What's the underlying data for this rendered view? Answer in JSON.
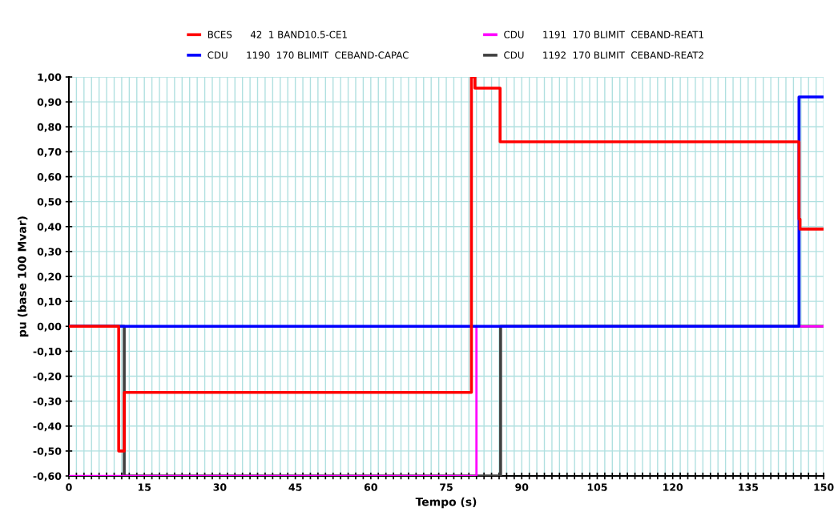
{
  "chart_data": {
    "type": "step",
    "xlabel": "Tempo (s)",
    "ylabel": "pu (base 100 Mvar)",
    "xlim": [
      0,
      150
    ],
    "ylim": [
      -0.6,
      1.0
    ],
    "xticks": [
      0,
      {
        "value": 1.5,
        "label": null
      },
      {
        "value": 3,
        "label": null
      },
      {
        "value": 4.5,
        "label": null
      },
      {
        "value": 6,
        "label": null
      },
      {
        "value": 7.5,
        "label": null
      },
      {
        "value": 9,
        "label": null
      },
      {
        "value": 10.5,
        "label": null
      },
      {
        "value": 12,
        "label": null
      },
      {
        "value": 13.5,
        "label": null
      },
      15,
      {
        "value": 16.5,
        "label": null
      },
      {
        "value": 18,
        "label": null
      },
      {
        "value": 19.5,
        "label": null
      },
      {
        "value": 21,
        "label": null
      },
      {
        "value": 22.5,
        "label": null
      },
      {
        "value": 24,
        "label": null
      },
      {
        "value": 25.5,
        "label": null
      },
      {
        "value": 27,
        "label": null
      },
      {
        "value": 28.5,
        "label": null
      },
      30,
      {
        "value": 31.5,
        "label": null
      },
      {
        "value": 33,
        "label": null
      },
      {
        "value": 34.5,
        "label": null
      },
      {
        "value": 36,
        "label": null
      },
      {
        "value": 37.5,
        "label": null
      },
      {
        "value": 39,
        "label": null
      },
      {
        "value": 40.5,
        "label": null
      },
      {
        "value": 42,
        "label": null
      },
      {
        "value": 43.5,
        "label": null
      },
      45,
      {
        "value": 46.5,
        "label": null
      },
      {
        "value": 48,
        "label": null
      },
      {
        "value": 49.5,
        "label": null
      },
      {
        "value": 51,
        "label": null
      },
      {
        "value": 52.5,
        "label": null
      },
      {
        "value": 54,
        "label": null
      },
      {
        "value": 55.5,
        "label": null
      },
      {
        "value": 57,
        "label": null
      },
      {
        "value": 58.5,
        "label": null
      },
      60,
      {
        "value": 61.5,
        "label": null
      },
      {
        "value": 63,
        "label": null
      },
      {
        "value": 64.5,
        "label": null
      },
      {
        "value": 66,
        "label": null
      },
      {
        "value": 67.5,
        "label": null
      },
      {
        "value": 69,
        "label": null
      },
      {
        "value": 70.5,
        "label": null
      },
      {
        "value": 72,
        "label": null
      },
      {
        "value": 73.5,
        "label": null
      },
      75,
      {
        "value": 76.5,
        "label": null
      },
      {
        "value": 78,
        "label": null
      },
      {
        "value": 79.5,
        "label": null
      },
      {
        "value": 81,
        "label": null
      },
      {
        "value": 82.5,
        "label": null
      },
      {
        "value": 84,
        "label": null
      },
      {
        "value": 85.5,
        "label": null
      },
      {
        "value": 87,
        "label": null
      },
      {
        "value": 88.5,
        "label": null
      },
      90,
      {
        "value": 91.5,
        "label": null
      },
      {
        "value": 93,
        "label": null
      },
      {
        "value": 94.5,
        "label": null
      },
      {
        "value": 96,
        "label": null
      },
      {
        "value": 97.5,
        "label": null
      },
      {
        "value": 99,
        "label": null
      },
      {
        "value": 100.5,
        "label": null
      },
      {
        "value": 102,
        "label": null
      },
      {
        "value": 103.5,
        "label": null
      },
      105,
      {
        "value": 106.5,
        "label": null
      },
      {
        "value": 108,
        "label": null
      },
      {
        "value": 109.5,
        "label": null
      },
      {
        "value": 111,
        "label": null
      },
      {
        "value": 112.5,
        "label": null
      },
      {
        "value": 114,
        "label": null
      },
      {
        "value": 115.5,
        "label": null
      },
      {
        "value": 117,
        "label": null
      },
      {
        "value": 118.5,
        "label": null
      },
      120,
      {
        "value": 121.5,
        "label": null
      },
      {
        "value": 123,
        "label": null
      },
      {
        "value": 124.5,
        "label": null
      },
      {
        "value": 126,
        "label": null
      },
      {
        "value": 127.5,
        "label": null
      },
      {
        "value": 129,
        "label": null
      },
      {
        "value": 130.5,
        "label": null
      },
      {
        "value": 132,
        "label": null
      },
      {
        "value": 133.5,
        "label": null
      },
      135,
      {
        "value": 136.5,
        "label": null
      },
      {
        "value": 138,
        "label": null
      },
      {
        "value": 139.5,
        "label": null
      },
      {
        "value": 141,
        "label": null
      },
      {
        "value": 142.5,
        "label": null
      },
      {
        "value": 144,
        "label": null
      },
      {
        "value": 145.5,
        "label": null
      },
      {
        "value": 147,
        "label": null
      },
      {
        "value": 148.5,
        "label": null
      },
      150
    ],
    "yticks": [
      {
        "value": -0.6,
        "label": "-0,60"
      },
      {
        "value": -0.5,
        "label": "-0,50"
      },
      {
        "value": -0.4,
        "label": "-0,40"
      },
      {
        "value": -0.3,
        "label": "-0,30"
      },
      {
        "value": -0.2,
        "label": "-0,20"
      },
      {
        "value": -0.1,
        "label": "-0,10"
      },
      {
        "value": 0,
        "label": "0,00"
      },
      {
        "value": 0.1,
        "label": "0,10"
      },
      {
        "value": 0.2,
        "label": "0,20"
      },
      {
        "value": 0.3,
        "label": "0,30"
      },
      {
        "value": 0.4,
        "label": "0,40"
      },
      {
        "value": 0.5,
        "label": "0,50"
      },
      {
        "value": 0.6,
        "label": "0,60"
      },
      {
        "value": 0.7,
        "label": "0,70"
      },
      {
        "value": 0.8,
        "label": "0,80"
      },
      {
        "value": 0.9,
        "label": "0,90"
      },
      {
        "value": 1.0,
        "label": "1,00"
      }
    ],
    "grid": true,
    "legend": "top",
    "line_style": "solid",
    "marker": "none",
    "series": [
      {
        "name": "BCES      42  1 BAND10.5-CE1",
        "color": "#ff0000",
        "x": [
          0,
          9.9,
          11,
          80,
          80.7,
          85.7,
          145.1,
          145.3,
          150
        ],
        "values": [
          0,
          -0.5,
          -0.265,
          1.0,
          0.955,
          0.74,
          0.43,
          0.39,
          0.39
        ]
      },
      {
        "name": "CDU      1190  170 BLIMIT  CEBAND-CAPAC",
        "color": "#0000ff",
        "x": [
          0,
          145.1,
          150
        ],
        "values": [
          0,
          0.92,
          0.92
        ]
      },
      {
        "name": "CDU      1191  170 BLIMIT  CEBAND-REAT1",
        "color": "#ff00ff",
        "x": [
          0,
          81,
          150
        ],
        "values": [
          -0.6,
          0,
          0
        ]
      },
      {
        "name": "CDU      1192  170 BLIMIT  CEBAND-REAT2",
        "color": "#404040",
        "x": [
          0,
          11,
          85.8,
          150
        ],
        "values": [
          0,
          -0.6,
          0,
          0
        ]
      }
    ]
  }
}
